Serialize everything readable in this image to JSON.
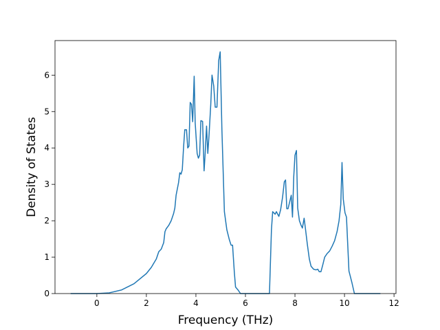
{
  "chart_data": {
    "type": "line",
    "xlabel": "Frequency (THz)",
    "ylabel": "Density of States",
    "color": "#1f77b4",
    "x": [
      -1.06,
      0,
      0.5,
      1.0,
      1.5,
      2.0,
      2.2,
      2.4,
      2.5,
      2.6,
      2.7,
      2.75,
      2.8,
      2.9,
      3.0,
      3.1,
      3.15,
      3.2,
      3.3,
      3.35,
      3.4,
      3.45,
      3.5,
      3.55,
      3.62,
      3.67,
      3.72,
      3.77,
      3.82,
      3.87,
      3.93,
      3.97,
      4.05,
      4.1,
      4.15,
      4.2,
      4.27,
      4.33,
      4.37,
      4.43,
      4.48,
      4.53,
      4.6,
      4.65,
      4.72,
      4.78,
      4.85,
      4.92,
      4.98,
      5.05,
      5.15,
      5.25,
      5.35,
      5.42,
      5.48,
      5.55,
      5.6,
      5.7,
      5.8,
      6.97,
      7.05,
      7.1,
      7.2,
      7.25,
      7.35,
      7.42,
      7.5,
      7.57,
      7.62,
      7.67,
      7.72,
      7.78,
      7.85,
      7.9,
      7.95,
      8.0,
      8.06,
      8.11,
      8.18,
      8.25,
      8.3,
      8.37,
      8.42,
      8.5,
      8.58,
      8.65,
      8.75,
      8.85,
      8.92,
      8.98,
      9.05,
      9.12,
      9.2,
      9.3,
      9.4,
      9.5,
      9.6,
      9.7,
      9.78,
      9.85,
      9.9,
      9.95,
      10.02,
      10.08,
      10.18,
      10.3,
      10.4,
      11.45
    ],
    "values": [
      0,
      0,
      0.02,
      0.1,
      0.27,
      0.55,
      0.72,
      0.95,
      1.15,
      1.22,
      1.4,
      1.7,
      1.78,
      1.87,
      2.0,
      2.2,
      2.35,
      2.7,
      3.05,
      3.32,
      3.28,
      3.4,
      4.0,
      4.5,
      4.5,
      4.0,
      4.05,
      5.25,
      5.2,
      4.72,
      5.97,
      4.7,
      3.85,
      3.72,
      3.8,
      4.75,
      4.73,
      3.37,
      3.8,
      4.6,
      3.85,
      4.35,
      5.2,
      6.0,
      5.7,
      5.12,
      5.12,
      6.4,
      6.64,
      4.5,
      2.25,
      1.75,
      1.48,
      1.33,
      1.33,
      0.6,
      0.18,
      0.1,
      0,
      0,
      1.75,
      2.25,
      2.18,
      2.25,
      2.12,
      2.3,
      2.65,
      3.07,
      3.12,
      2.33,
      2.33,
      2.5,
      2.7,
      2.1,
      3.2,
      3.8,
      3.93,
      2.35,
      2.0,
      1.87,
      1.8,
      2.07,
      1.8,
      1.35,
      0.95,
      0.75,
      0.67,
      0.65,
      0.67,
      0.6,
      0.6,
      0.78,
      1.0,
      1.1,
      1.17,
      1.3,
      1.45,
      1.7,
      2.0,
      2.45,
      3.6,
      2.6,
      2.22,
      2.1,
      0.62,
      0.3,
      0,
      0
    ],
    "xlim": [
      -1.69,
      12.08
    ],
    "ylim": [
      0,
      6.95
    ],
    "xticks": [
      0,
      2,
      4,
      6,
      8,
      10,
      12
    ],
    "yticks": [
      0,
      1,
      2,
      3,
      4,
      5,
      6
    ],
    "grid": false
  }
}
